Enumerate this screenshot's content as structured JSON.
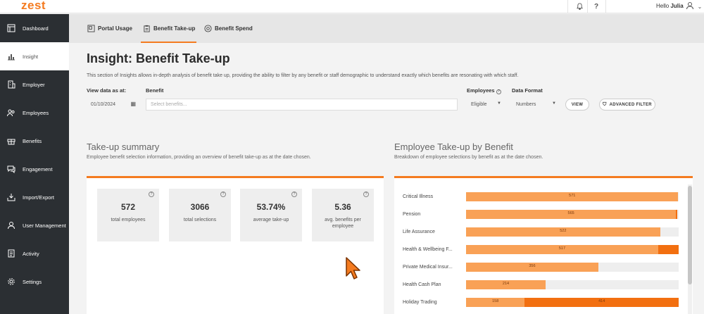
{
  "topbar": {
    "logo": "zest",
    "greeting_prefix": "Hello",
    "user_name": "Julia"
  },
  "sidebar": {
    "items": [
      {
        "label": "Dashboard",
        "icon": "dashboard-icon"
      },
      {
        "label": "Insight",
        "icon": "chart-icon"
      },
      {
        "label": "Employer",
        "icon": "building-icon"
      },
      {
        "label": "Employees",
        "icon": "people-icon"
      },
      {
        "label": "Benefits",
        "icon": "gift-icon"
      },
      {
        "label": "Engagement",
        "icon": "chat-icon"
      },
      {
        "label": "Import/Export",
        "icon": "import-export-icon"
      },
      {
        "label": "User Management",
        "icon": "user-icon"
      },
      {
        "label": "Activity",
        "icon": "activity-icon"
      },
      {
        "label": "Settings",
        "icon": "gear-icon"
      }
    ],
    "active_index": 1
  },
  "tabs": [
    {
      "label": "Portal Usage"
    },
    {
      "label": "Benefit Take-up"
    },
    {
      "label": "Benefit Spend"
    }
  ],
  "page": {
    "title": "Insight: Benefit Take-up",
    "description": "This section of Insights allows in-depth analysis of benefit take up, providing the ability to filter by any benefit or staff demographic to understand exactly which benefits are resonating with which staff."
  },
  "filters": {
    "view_as_at_label": "View data as at:",
    "date_value": "01/10/2024",
    "benefit_label": "Benefit",
    "benefit_placeholder": "Select benefits...",
    "employees_label": "Employees",
    "employees_value": "Eligible",
    "data_format_label": "Data Format",
    "data_format_value": "Numbers",
    "view_button": "VIEW",
    "advanced_filter_button": "ADVANCED FILTER"
  },
  "summary": {
    "title": "Take-up summary",
    "description": "Employee benefit selection information, providing an overview of benefit take-up as at the date chosen.",
    "stats": [
      {
        "value": "572",
        "caption": "total employees"
      },
      {
        "value": "3066",
        "caption": "total selections"
      },
      {
        "value": "53.74%",
        "caption": "average take-up"
      },
      {
        "value": "5.36",
        "caption": "avg. benefits per employee"
      }
    ]
  },
  "breakdown": {
    "title": "Employee Take-up by Benefit",
    "description": "Breakdown of employee selections by benefit as at the date chosen."
  },
  "chart_data": {
    "type": "bar",
    "orientation": "horizontal",
    "stacked": true,
    "max": 572,
    "categories": [
      "Critical Illness",
      "Pension",
      "Life Assurance",
      "Health & Wellbeing F...",
      "Private Medical Insur...",
      "Health Cash Plan",
      "Holiday Trading"
    ],
    "series": [
      {
        "values": [
          571,
          565,
          522,
          517,
          356,
          214,
          158
        ],
        "labels": [
          "571",
          "565",
          "522",
          "517",
          "356",
          "214",
          "158"
        ],
        "color": "#f9a156"
      },
      {
        "values": [
          0,
          4,
          0,
          55,
          0,
          0,
          414
        ],
        "labels": [
          "",
          "",
          "",
          "",
          "",
          "",
          "414"
        ],
        "color": "#f26f10"
      }
    ]
  },
  "colors": {
    "accent": "#f47b20",
    "sidebar_bg": "#2b2f33",
    "bar_light": "#f9a156",
    "bar_dark": "#f26f10"
  }
}
